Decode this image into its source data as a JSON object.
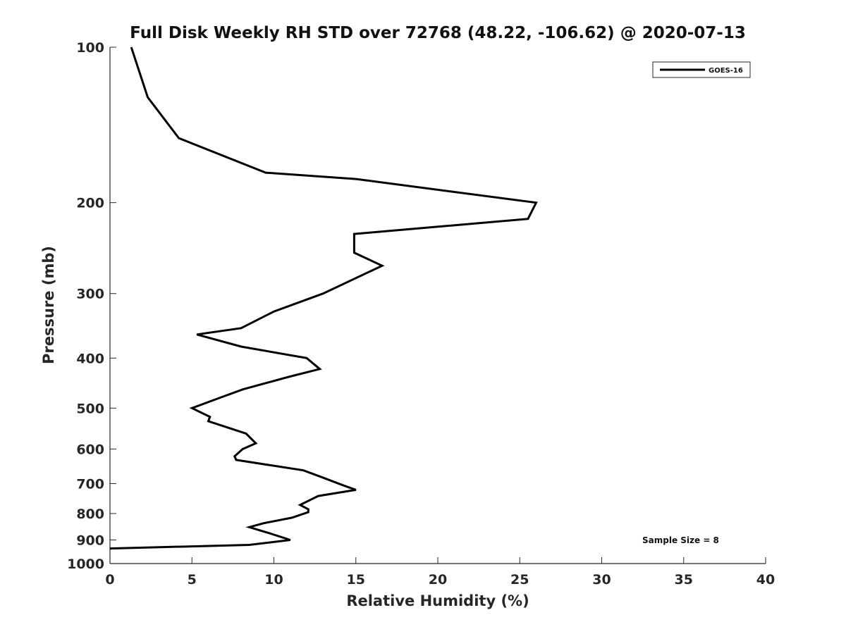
{
  "chart_data": {
    "type": "line",
    "title": "Full Disk Weekly RH STD over 72768 (48.22, -106.62) @ 2020-07-13",
    "xlabel": "Relative Humidity (%)",
    "ylabel": "Pressure (mb)",
    "xlim": [
      0,
      40
    ],
    "ylim": [
      100,
      1000
    ],
    "y_scale": "log",
    "y_reversed": true,
    "x_ticks": [
      0,
      5,
      10,
      15,
      20,
      25,
      30,
      35,
      40
    ],
    "y_ticks": [
      100,
      200,
      300,
      400,
      500,
      600,
      700,
      800,
      900,
      1000
    ],
    "grid": false,
    "legend_position": "top-right",
    "series": [
      {
        "name": "GOES-16",
        "color": "#000000",
        "points": [
          [
            1.3,
            100
          ],
          [
            2.3,
            125
          ],
          [
            4.2,
            150
          ],
          [
            9.5,
            175
          ],
          [
            15.0,
            180
          ],
          [
            26.0,
            200
          ],
          [
            25.5,
            215
          ],
          [
            14.9,
            230
          ],
          [
            14.9,
            250
          ],
          [
            16.6,
            265
          ],
          [
            13.0,
            300
          ],
          [
            10.0,
            325
          ],
          [
            8.0,
            350
          ],
          [
            5.3,
            360
          ],
          [
            8.0,
            380
          ],
          [
            12.0,
            400
          ],
          [
            12.8,
            420
          ],
          [
            10.9,
            435
          ],
          [
            8.1,
            460
          ],
          [
            6.9,
            475
          ],
          [
            5.0,
            500
          ],
          [
            6.1,
            520
          ],
          [
            6.0,
            530
          ],
          [
            8.3,
            560
          ],
          [
            8.9,
            585
          ],
          [
            8.1,
            600
          ],
          [
            7.6,
            620
          ],
          [
            7.7,
            630
          ],
          [
            11.8,
            660
          ],
          [
            12.9,
            680
          ],
          [
            14.2,
            705
          ],
          [
            15.0,
            720
          ],
          [
            12.7,
            740
          ],
          [
            11.6,
            770
          ],
          [
            12.1,
            785
          ],
          [
            12.1,
            795
          ],
          [
            11.1,
            815
          ],
          [
            9.4,
            835
          ],
          [
            8.5,
            850
          ],
          [
            9.8,
            875
          ],
          [
            11.0,
            900
          ],
          [
            8.5,
            920
          ],
          [
            0.0,
            935
          ]
        ]
      }
    ],
    "annotations": [
      "Sample Size = 8"
    ]
  }
}
